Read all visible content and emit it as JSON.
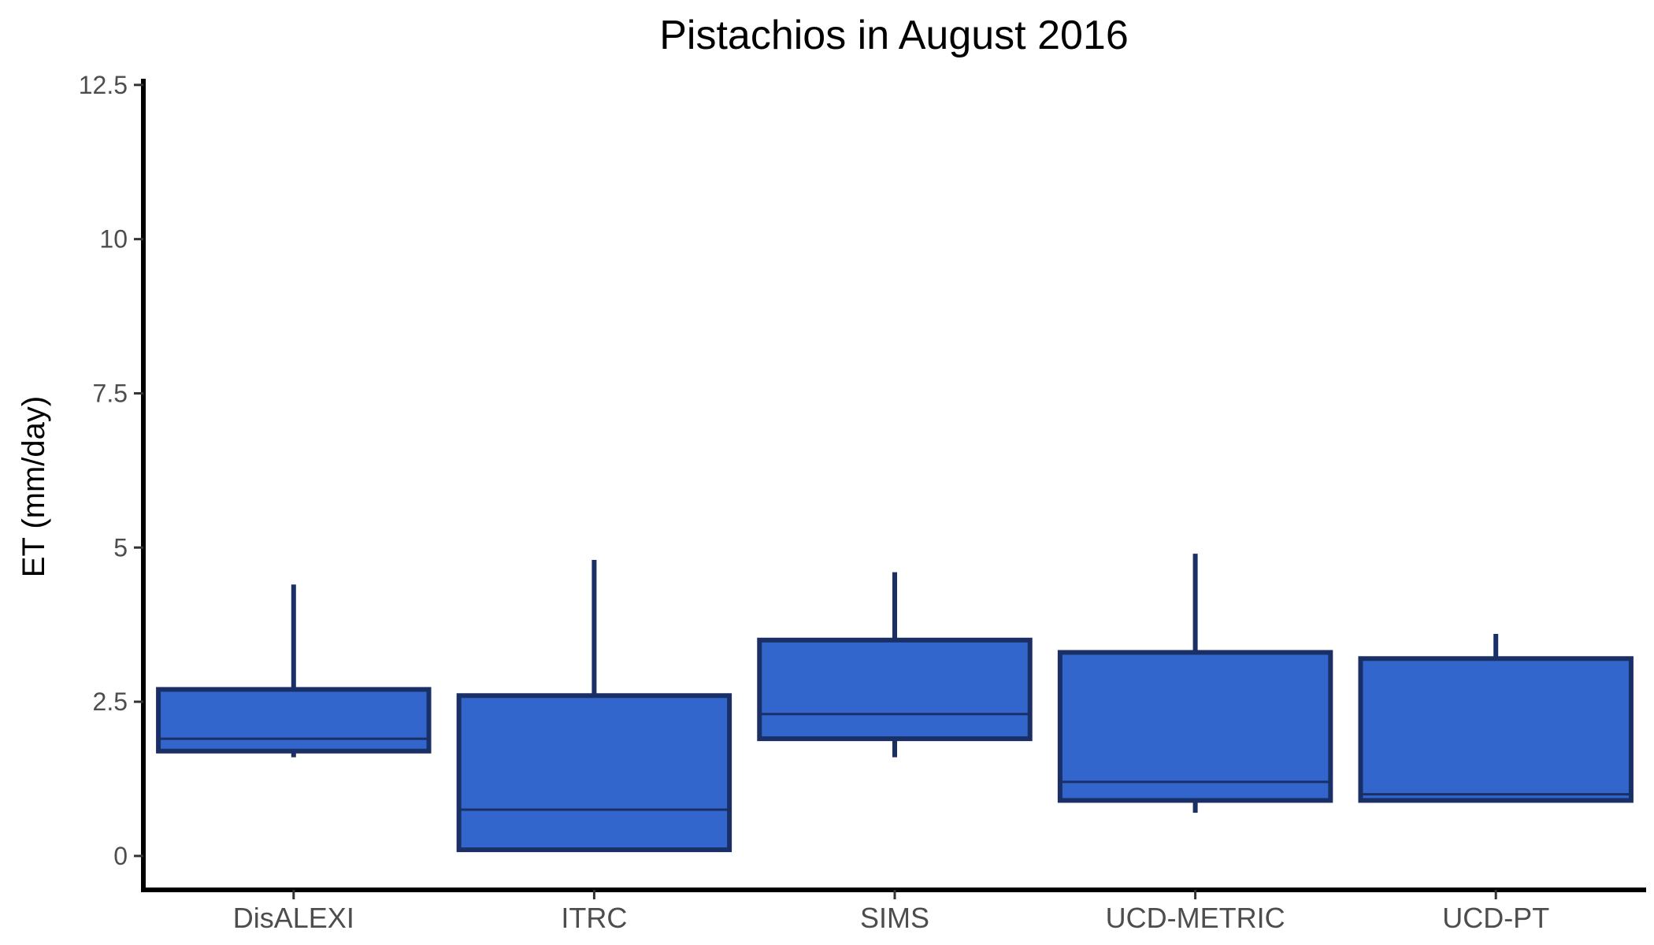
{
  "chart_data": {
    "type": "boxplot",
    "title": "Pistachios in August 2016",
    "xlabel": "",
    "ylabel": "ET (mm/day)",
    "ylim": [
      -0.55,
      12.6
    ],
    "yticks": [
      0,
      2.5,
      5,
      7.5,
      10,
      12.5
    ],
    "ytick_labels": [
      "0",
      "2.5",
      "5",
      "7.5",
      "10",
      "12.5"
    ],
    "grid": false,
    "fill_color": "#3366cc",
    "line_color": "#1a2f66",
    "categories": [
      "DisALEXI",
      "ITRC",
      "SIMS",
      "UCD-METRIC",
      "UCD-PT"
    ],
    "boxes": [
      {
        "category": "DisALEXI",
        "min": 1.6,
        "q1": 1.7,
        "median": 1.9,
        "q3": 2.7,
        "max": 4.4
      },
      {
        "category": "ITRC",
        "min": 0.1,
        "q1": 0.1,
        "median": 0.75,
        "q3": 2.6,
        "max": 4.8
      },
      {
        "category": "SIMS",
        "min": 1.6,
        "q1": 1.9,
        "median": 2.3,
        "q3": 3.5,
        "max": 4.6
      },
      {
        "category": "UCD-METRIC",
        "min": 0.7,
        "q1": 0.9,
        "median": 1.2,
        "q3": 3.3,
        "max": 4.9
      },
      {
        "category": "UCD-PT",
        "min": 0.9,
        "q1": 0.9,
        "median": 1.0,
        "q3": 3.2,
        "max": 3.6
      }
    ]
  }
}
